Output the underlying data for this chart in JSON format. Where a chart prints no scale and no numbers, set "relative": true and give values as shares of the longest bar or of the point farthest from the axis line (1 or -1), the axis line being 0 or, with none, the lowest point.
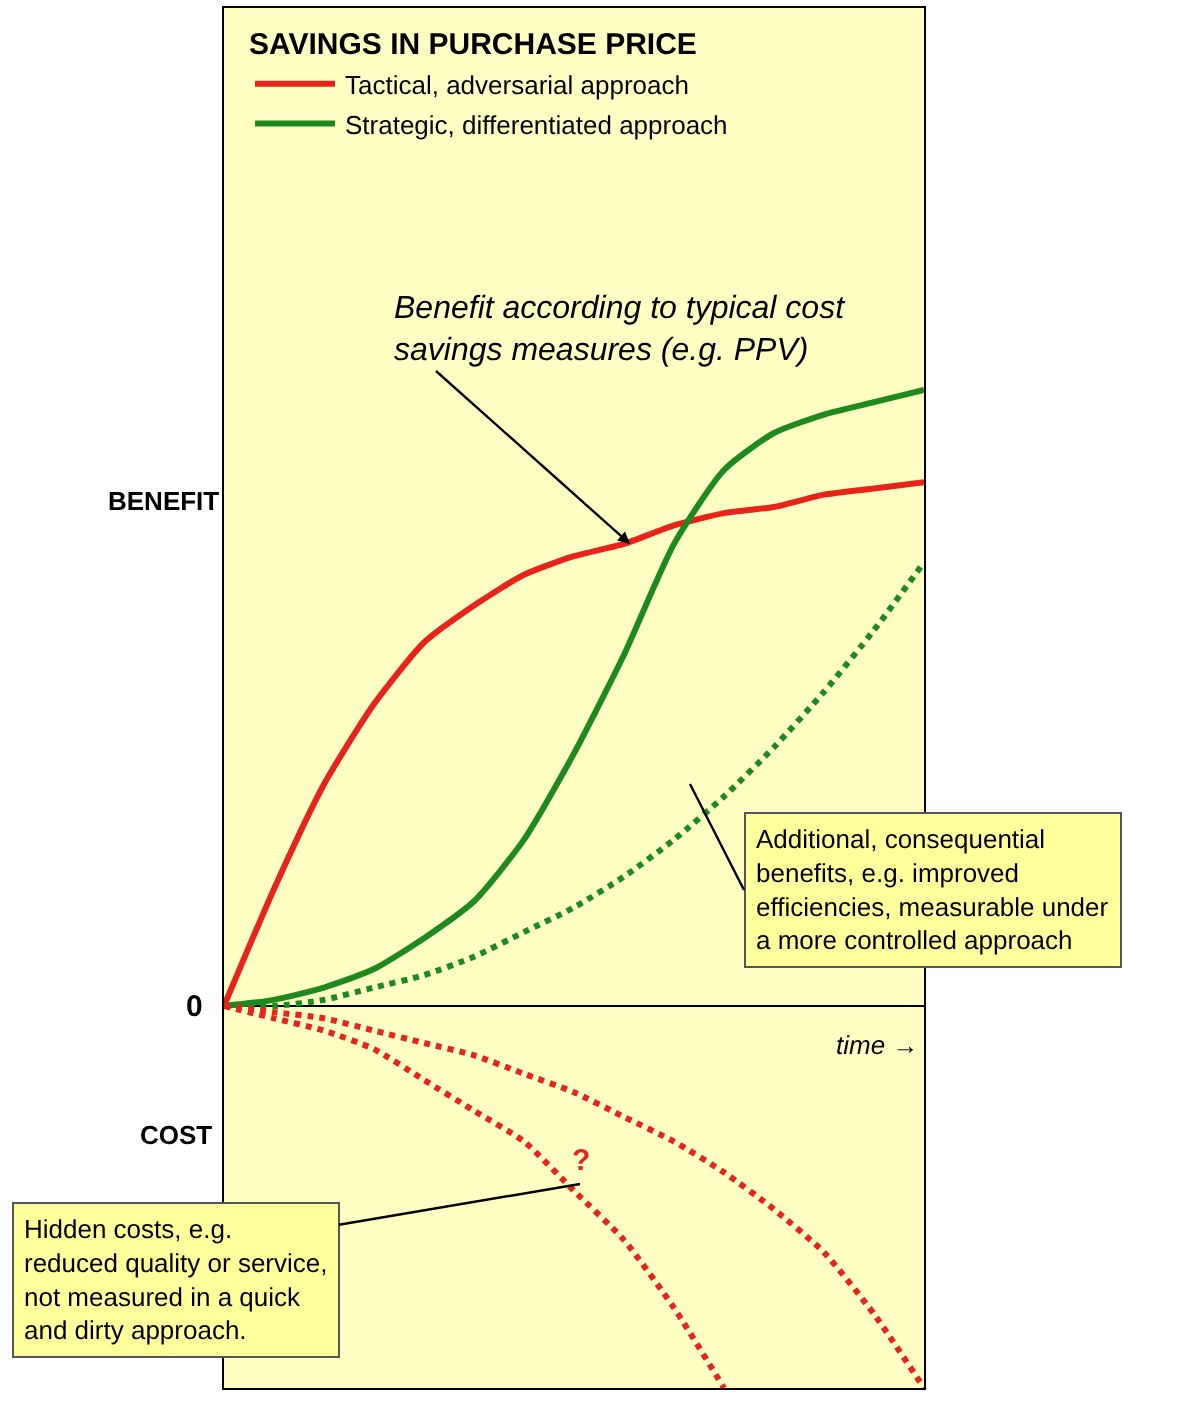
{
  "chart_data": {
    "type": "line",
    "relative": true,
    "legend_title": "SAVINGS IN PURCHASE PRICE",
    "legend": "top left",
    "grid": false,
    "marker": "none",
    "categories": [
      null,
      null,
      null,
      null,
      null,
      null,
      null,
      null,
      null,
      null,
      null,
      null,
      null,
      null,
      null
    ],
    "series": [
      {
        "name": "Tactical, adversarial approach",
        "color": "#e8231a",
        "line_style": "solid",
        "values": [
          0,
          0.19,
          0.36,
          0.49,
          0.59,
          0.65,
          0.7,
          0.73,
          0.75,
          0.78,
          0.8,
          0.81,
          0.83,
          0.84,
          0.85
        ]
      },
      {
        "name": "Strategic, differentiated approach",
        "color": "#1e8a1e",
        "line_style": "solid",
        "values": [
          0,
          0.01,
          0.03,
          0.06,
          0.11,
          0.17,
          0.27,
          0.41,
          0.57,
          0.75,
          0.87,
          0.93,
          0.96,
          0.98,
          1
        ]
      },
      {
        "color": "#1e8a1e",
        "line_style": "dotted",
        "values": [
          0,
          0,
          0.01,
          0.03,
          0.05,
          0.08,
          0.12,
          0.16,
          0.21,
          0.27,
          0.34,
          0.42,
          0.51,
          0.61,
          0.72
        ]
      },
      {
        "color": "#e8231a",
        "line_style": "dotted",
        "values": [
          0,
          -0.01,
          -0.02,
          -0.04,
          -0.06,
          -0.08,
          -0.11,
          -0.14,
          -0.18,
          -0.22,
          -0.27,
          -0.33,
          -0.4,
          -0.5,
          -0.62
        ]
      },
      {
        "color": "#e8231a",
        "line_style": "dotted",
        "values": [
          0,
          -0.02,
          -0.04,
          -0.07,
          -0.12,
          -0.17,
          -0.22,
          -0.3,
          -0.38,
          -0.49,
          -0.62,
          null,
          null,
          null,
          null
        ]
      }
    ],
    "annotations": [
      "BENEFIT",
      "0",
      "COST",
      "time →",
      "Benefit according to typical cost\nsavings measures (e.g. PPV)",
      "?",
      "Additional, consequential\nbenefits, e.g. improved\nefficiencies, measurable under\na more controlled approach",
      "Hidden costs, e.g.\nreduced quality or service,\nnot measured in a quick\nand dirty approach."
    ]
  }
}
